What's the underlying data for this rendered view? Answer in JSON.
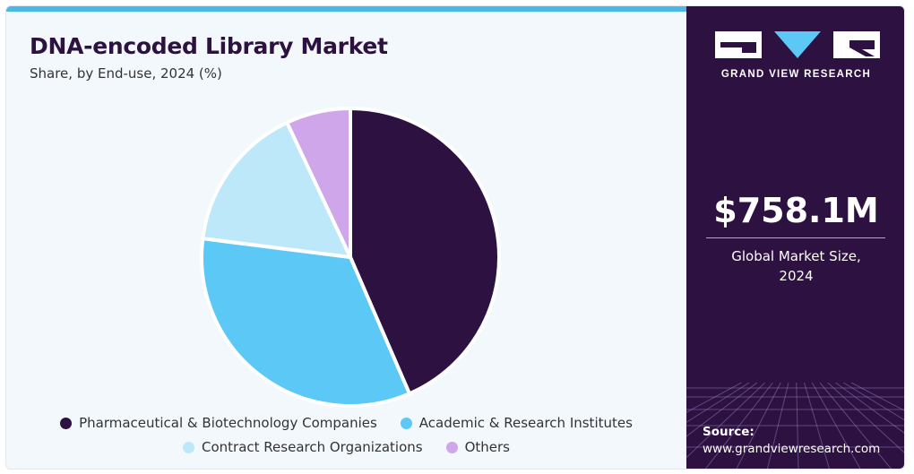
{
  "header": {
    "title": "DNA-encoded Library Market",
    "subtitle": "Share, by End-use, 2024 (%)"
  },
  "colors": {
    "accent_bar": "#4bb6e8",
    "panel": "#2d1140",
    "series": [
      "#2d1140",
      "#5bc8f5",
      "#bde8f9",
      "#d0a6ea"
    ]
  },
  "chart_data": {
    "type": "pie",
    "title": "DNA-encoded Library Market",
    "categories": [
      "Pharmaceutical & Biotechnology Companies",
      "Academic & Research Institutes",
      "Contract Research Organizations",
      "Others"
    ],
    "values": [
      43.5,
      33.5,
      16.0,
      7.0
    ],
    "legend_placement": "bottom"
  },
  "legend": {
    "items": [
      "Pharmaceutical & Biotechnology Companies",
      "Academic & Research Institutes",
      "Contract Research Organizations",
      "Others"
    ]
  },
  "sidebar": {
    "brand": "GRAND VIEW RESEARCH",
    "market_size": "$758.1M",
    "market_label_line1": "Global Market Size,",
    "market_label_line2": "2024",
    "source_label": "Source:",
    "source_url": "www.grandviewresearch.com"
  }
}
